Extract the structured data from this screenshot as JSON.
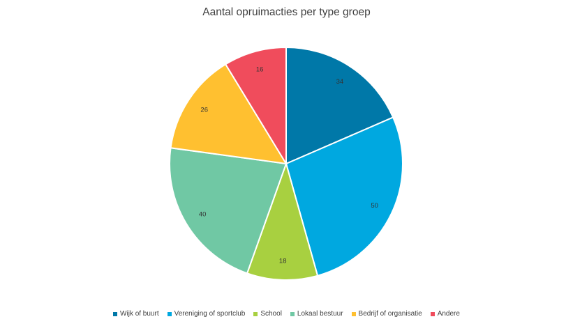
{
  "chart_data": {
    "type": "pie",
    "title": "Aantal opruimacties per type groep",
    "categories": [
      "Wijk of buurt",
      "Vereniging of sportclub",
      "School",
      "Lokaal bestuur",
      "Bedrijf of organisatie",
      "Andere"
    ],
    "values": [
      34,
      50,
      18,
      40,
      26,
      16
    ],
    "colors": [
      "#0078A8",
      "#00A8E0",
      "#A8D040",
      "#70C8A4",
      "#FFC030",
      "#F04C5C"
    ],
    "legend_position": "bottom",
    "data_labels": true
  }
}
